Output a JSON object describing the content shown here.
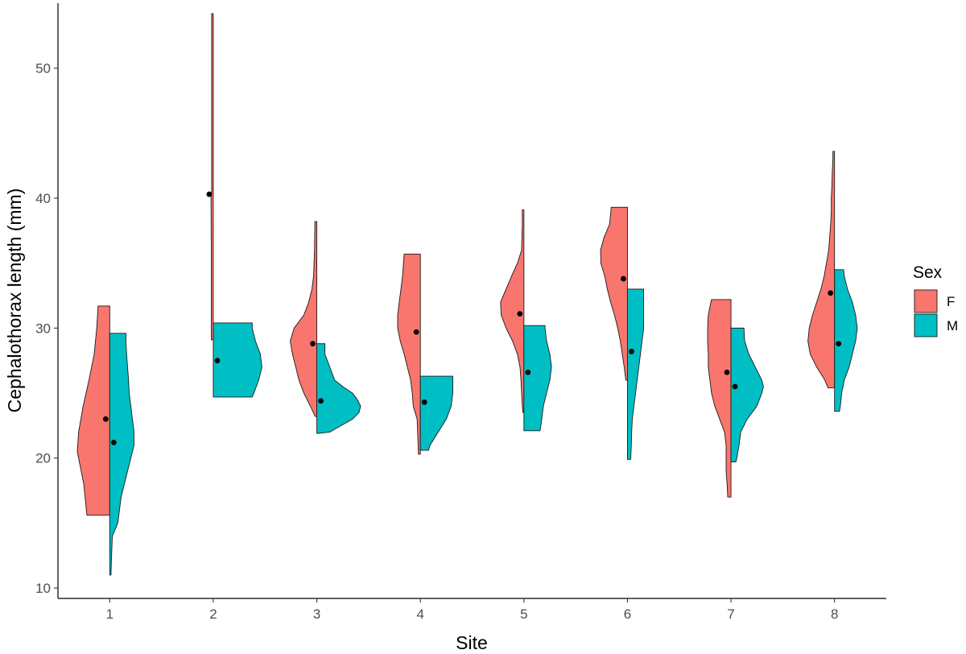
{
  "chart_data": {
    "type": "split-violin",
    "xlabel": "Site",
    "ylabel": "Cephalothorax length (mm)",
    "categories": [
      "1",
      "2",
      "3",
      "4",
      "5",
      "6",
      "7",
      "8"
    ],
    "yticks": [
      "10",
      "20",
      "30",
      "40",
      "50"
    ],
    "ylim": [
      9.2,
      55
    ],
    "grid": false,
    "legend": {
      "title": "Sex",
      "placement": "right",
      "entries": [
        {
          "label": "F",
          "color": "#F8766D"
        },
        {
          "label": "M",
          "color": "#00BFC4"
        }
      ]
    },
    "series": [
      {
        "name": "F",
        "color": "#F8766D",
        "side": "left",
        "groups": [
          {
            "site": "1",
            "mean": 23.0,
            "profile": [
              [
                15.6,
                0.7
              ],
              [
                16,
                0.72
              ],
              [
                18,
                0.8
              ],
              [
                19.5,
                0.92
              ],
              [
                20.5,
                1.0
              ],
              [
                22,
                0.96
              ],
              [
                24,
                0.82
              ],
              [
                26,
                0.64
              ],
              [
                28,
                0.48
              ],
              [
                30,
                0.4
              ],
              [
                31.7,
                0.36
              ]
            ]
          },
          {
            "site": "2",
            "mean": 40.3,
            "profile": [
              [
                29.1,
                0.06
              ],
              [
                30,
                0.06
              ],
              [
                35,
                0.06
              ],
              [
                40,
                0.07
              ],
              [
                40.5,
                0.05
              ],
              [
                45,
                0.05
              ],
              [
                50,
                0.05
              ],
              [
                54.2,
                0.05
              ]
            ]
          },
          {
            "site": "3",
            "mean": 28.8,
            "profile": [
              [
                23.2,
                0.05
              ],
              [
                24,
                0.2
              ],
              [
                25,
                0.4
              ],
              [
                26,
                0.55
              ],
              [
                27,
                0.65
              ],
              [
                28,
                0.75
              ],
              [
                29,
                0.82
              ],
              [
                30,
                0.7
              ],
              [
                31,
                0.4
              ],
              [
                32,
                0.25
              ],
              [
                33,
                0.15
              ],
              [
                34,
                0.1
              ],
              [
                36,
                0.07
              ],
              [
                38.2,
                0.06
              ]
            ]
          },
          {
            "site": "4",
            "mean": 29.7,
            "profile": [
              [
                20.3,
                0.06
              ],
              [
                21,
                0.07
              ],
              [
                23,
                0.1
              ],
              [
                24,
                0.22
              ],
              [
                25,
                0.25
              ],
              [
                26,
                0.3
              ],
              [
                27,
                0.4
              ],
              [
                28,
                0.5
              ],
              [
                29,
                0.62
              ],
              [
                30,
                0.7
              ],
              [
                31,
                0.7
              ],
              [
                32,
                0.65
              ],
              [
                33,
                0.6
              ],
              [
                34,
                0.55
              ],
              [
                35,
                0.52
              ],
              [
                35.7,
                0.5
              ]
            ]
          },
          {
            "site": "5",
            "mean": 31.1,
            "profile": [
              [
                23.5,
                0.03
              ],
              [
                24,
                0.05
              ],
              [
                25,
                0.07
              ],
              [
                26,
                0.09
              ],
              [
                27,
                0.12
              ],
              [
                28,
                0.2
              ],
              [
                29,
                0.35
              ],
              [
                30,
                0.55
              ],
              [
                31,
                0.7
              ],
              [
                32,
                0.72
              ],
              [
                33,
                0.55
              ],
              [
                34,
                0.38
              ],
              [
                35,
                0.2
              ],
              [
                36,
                0.07
              ],
              [
                37,
                0.06
              ],
              [
                38,
                0.05
              ],
              [
                39.1,
                0.05
              ]
            ]
          },
          {
            "site": "6",
            "mean": 33.8,
            "profile": [
              [
                26,
                0.05
              ],
              [
                27,
                0.1
              ],
              [
                29,
                0.22
              ],
              [
                30,
                0.3
              ],
              [
                31,
                0.4
              ],
              [
                32,
                0.52
              ],
              [
                33,
                0.62
              ],
              [
                34,
                0.7
              ],
              [
                35,
                0.82
              ],
              [
                36,
                0.83
              ],
              [
                37,
                0.72
              ],
              [
                38,
                0.55
              ],
              [
                39.3,
                0.5
              ]
            ]
          },
          {
            "site": "7",
            "mean": 26.6,
            "profile": [
              [
                17,
                0.1
              ],
              [
                18,
                0.12
              ],
              [
                19,
                0.15
              ],
              [
                20,
                0.15
              ],
              [
                21,
                0.15
              ],
              [
                22,
                0.2
              ],
              [
                23,
                0.35
              ],
              [
                24,
                0.5
              ],
              [
                25,
                0.6
              ],
              [
                26,
                0.65
              ],
              [
                27,
                0.7
              ],
              [
                28,
                0.7
              ],
              [
                29,
                0.72
              ],
              [
                30,
                0.72
              ],
              [
                31,
                0.7
              ],
              [
                32,
                0.62
              ],
              [
                32.2,
                0.6
              ]
            ]
          },
          {
            "site": "8",
            "mean": 32.7,
            "profile": [
              [
                25.4,
                0.2
              ],
              [
                26,
                0.3
              ],
              [
                27,
                0.55
              ],
              [
                28,
                0.75
              ],
              [
                29,
                0.82
              ],
              [
                30,
                0.78
              ],
              [
                31,
                0.68
              ],
              [
                32,
                0.55
              ],
              [
                33,
                0.42
              ],
              [
                34,
                0.32
              ],
              [
                35,
                0.25
              ],
              [
                36,
                0.18
              ],
              [
                37,
                0.15
              ],
              [
                38,
                0.12
              ],
              [
                39,
                0.1
              ],
              [
                40,
                0.1
              ],
              [
                41,
                0.08
              ],
              [
                42,
                0.07
              ],
              [
                43,
                0.05
              ],
              [
                43.6,
                0.05
              ]
            ]
          }
        ]
      },
      {
        "name": "M",
        "color": "#00BFC4",
        "side": "right",
        "groups": [
          {
            "site": "1",
            "mean": 21.2,
            "profile": [
              [
                11,
                0.04
              ],
              [
                12,
                0.05
              ],
              [
                14,
                0.08
              ],
              [
                15,
                0.25
              ],
              [
                16,
                0.3
              ],
              [
                17,
                0.35
              ],
              [
                18,
                0.45
              ],
              [
                19,
                0.55
              ],
              [
                20,
                0.65
              ],
              [
                21,
                0.75
              ],
              [
                22,
                0.75
              ],
              [
                23,
                0.7
              ],
              [
                24,
                0.65
              ],
              [
                25,
                0.6
              ],
              [
                26,
                0.58
              ],
              [
                27,
                0.55
              ],
              [
                28,
                0.52
              ],
              [
                29,
                0.5
              ],
              [
                29.6,
                0.5
              ]
            ]
          },
          {
            "site": "2",
            "mean": 27.5,
            "profile": [
              [
                24.7,
                1.2
              ],
              [
                25,
                1.25
              ],
              [
                26,
                1.4
              ],
              [
                27,
                1.5
              ],
              [
                28,
                1.45
              ],
              [
                29,
                1.3
              ],
              [
                30,
                1.2
              ],
              [
                30.4,
                1.2
              ]
            ]
          },
          {
            "site": "3",
            "mean": 24.4,
            "profile": [
              [
                21.9,
                0.05
              ],
              [
                22,
                0.4
              ],
              [
                22.5,
                0.75
              ],
              [
                23,
                1.1
              ],
              [
                23.5,
                1.3
              ],
              [
                24,
                1.35
              ],
              [
                24.5,
                1.25
              ],
              [
                25,
                1.1
              ],
              [
                25.5,
                0.8
              ],
              [
                26,
                0.55
              ],
              [
                27,
                0.4
              ],
              [
                28,
                0.25
              ],
              [
                28.8,
                0.25
              ]
            ]
          },
          {
            "site": "4",
            "mean": 24.3,
            "profile": [
              [
                20.6,
                0.25
              ],
              [
                21,
                0.3
              ],
              [
                22,
                0.55
              ],
              [
                23,
                0.8
              ],
              [
                24,
                0.95
              ],
              [
                25,
                1.0
              ],
              [
                26,
                1.0
              ],
              [
                26.3,
                1.0
              ]
            ]
          },
          {
            "site": "5",
            "mean": 26.6,
            "profile": [
              [
                22.1,
                0.5
              ],
              [
                23,
                0.55
              ],
              [
                24,
                0.6
              ],
              [
                25,
                0.7
              ],
              [
                26,
                0.8
              ],
              [
                27,
                0.85
              ],
              [
                28,
                0.8
              ],
              [
                29,
                0.7
              ],
              [
                30,
                0.65
              ],
              [
                30.2,
                0.65
              ]
            ]
          },
          {
            "site": "6",
            "mean": 28.2,
            "profile": [
              [
                19.9,
                0.1
              ],
              [
                21,
                0.12
              ],
              [
                22,
                0.13
              ],
              [
                23,
                0.15
              ],
              [
                24,
                0.2
              ],
              [
                25,
                0.25
              ],
              [
                26,
                0.3
              ],
              [
                27,
                0.35
              ],
              [
                28,
                0.4
              ],
              [
                29,
                0.45
              ],
              [
                30,
                0.5
              ],
              [
                31,
                0.5
              ],
              [
                32,
                0.5
              ],
              [
                33,
                0.5
              ]
            ]
          },
          {
            "site": "7",
            "mean": 25.5,
            "profile": [
              [
                19.7,
                0.15
              ],
              [
                20,
                0.18
              ],
              [
                21,
                0.25
              ],
              [
                22,
                0.3
              ],
              [
                23,
                0.5
              ],
              [
                24,
                0.8
              ],
              [
                25,
                0.95
              ],
              [
                25.5,
                1.0
              ],
              [
                26,
                0.95
              ],
              [
                27,
                0.75
              ],
              [
                28,
                0.55
              ],
              [
                29,
                0.42
              ],
              [
                30,
                0.4
              ]
            ]
          },
          {
            "site": "8",
            "mean": 28.8,
            "profile": [
              [
                23.6,
                0.15
              ],
              [
                24,
                0.18
              ],
              [
                25,
                0.22
              ],
              [
                26,
                0.3
              ],
              [
                27,
                0.45
              ],
              [
                28,
                0.55
              ],
              [
                29,
                0.65
              ],
              [
                30,
                0.7
              ],
              [
                31,
                0.65
              ],
              [
                32,
                0.55
              ],
              [
                33,
                0.4
              ],
              [
                34,
                0.3
              ],
              [
                34.5,
                0.28
              ]
            ]
          }
        ]
      }
    ]
  }
}
